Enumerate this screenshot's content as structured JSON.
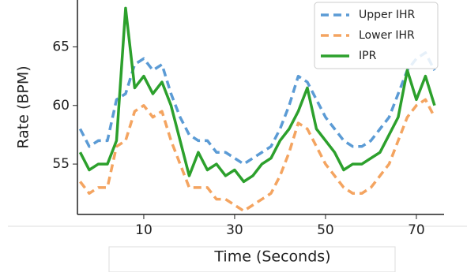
{
  "chart_data": {
    "type": "line",
    "x_label": "Time (Seconds)",
    "y_label": "Rate (BPM)",
    "x": [
      -4,
      -2,
      0,
      2,
      4,
      6,
      8,
      10,
      12,
      14,
      16,
      18,
      20,
      22,
      24,
      26,
      28,
      30,
      32,
      34,
      36,
      38,
      40,
      42,
      44,
      46,
      48,
      50,
      52,
      54,
      56,
      58,
      60,
      62,
      64,
      66,
      68,
      70,
      72,
      74
    ],
    "series": [
      {
        "name": "Upper IHR",
        "color": "#5b9bd5",
        "linestyle": "dashed",
        "values": [
          58,
          56.5,
          57,
          57,
          60.5,
          61,
          63.5,
          64,
          63,
          63.5,
          61,
          59,
          57.5,
          57,
          57,
          56,
          56,
          55.5,
          55,
          55.5,
          56,
          56.5,
          58,
          60,
          62.5,
          62,
          60.5,
          59,
          58,
          57,
          56.5,
          56.5,
          57,
          58,
          59,
          61,
          63,
          64,
          64.5,
          63
        ]
      },
      {
        "name": "Lower IHR",
        "color": "#f4a460",
        "linestyle": "dashed",
        "values": [
          53.5,
          52.5,
          53,
          53,
          56.5,
          57,
          59.5,
          60,
          59,
          59.5,
          57,
          55,
          53,
          53,
          53,
          52,
          52,
          51.5,
          51,
          51.5,
          52,
          52.5,
          54,
          56,
          58.5,
          58,
          56.5,
          55,
          54,
          53,
          52.5,
          52.5,
          53,
          54,
          55,
          57,
          59,
          60,
          60.5,
          59
        ]
      },
      {
        "name": "IPR",
        "color": "#2ca02c",
        "linestyle": "solid",
        "values": [
          56,
          54.5,
          55,
          55,
          57,
          68.3,
          61.5,
          62.5,
          61,
          62,
          60,
          57,
          54,
          56,
          54.5,
          55,
          54,
          54.5,
          53.5,
          54,
          55,
          55.5,
          57,
          58,
          59.5,
          61.5,
          58,
          57,
          56,
          54.5,
          55,
          55,
          55.5,
          56,
          57.5,
          59,
          63,
          60.5,
          62.5,
          60
        ]
      }
    ],
    "xlim": [
      -4.6,
      76.1
    ],
    "ylim": [
      50.7,
      69
    ],
    "xticks": [
      10,
      30,
      50,
      70
    ],
    "yticks": [
      55,
      60,
      65
    ],
    "legend": "upper right"
  }
}
